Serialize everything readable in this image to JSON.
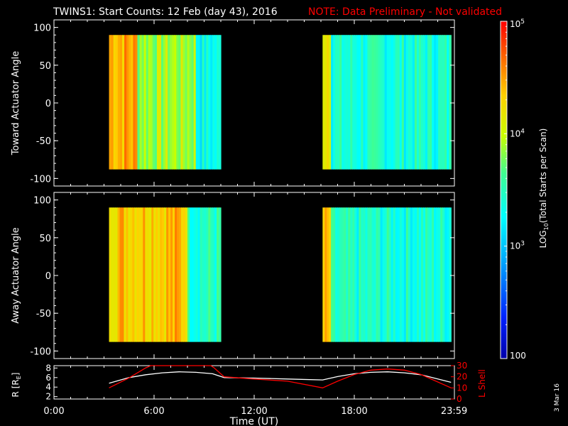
{
  "title": {
    "main": "TWINS1: Start Counts: 12 Feb (day  43), 2016",
    "note": "NOTE: Data Preliminary - Not validated"
  },
  "colors": {
    "background": "#000000",
    "axes": "#ffffff",
    "note": "#ff0000",
    "r_trace": "#ffffff",
    "l_trace": "#ff0000",
    "no_data": "#000000"
  },
  "colorbar": {
    "label": "LOG10(Total Starts per Scan)",
    "label_prefix": "LOG",
    "label_sub": "10",
    "label_suffix": "(Total Starts per Scan)",
    "min": 100,
    "max": 100000,
    "ticks": [
      {
        "value": 100,
        "label": "100"
      },
      {
        "value": 1000,
        "label": "10^3",
        "base": "10",
        "exp": "3"
      },
      {
        "value": 10000,
        "label": "10^4",
        "base": "10",
        "exp": "4"
      },
      {
        "value": 100000,
        "label": "10^5",
        "base": "10",
        "exp": "5"
      }
    ]
  },
  "date_stamp": "3 Mar 16",
  "chart_data": [
    {
      "type": "heatmap",
      "name": "toward",
      "ylabel": "Toward Actuator Angle",
      "xlabel": "",
      "xlim": [
        0,
        24
      ],
      "ylim": [
        -110,
        110
      ],
      "yticks": [
        100,
        50,
        0,
        -50,
        -100
      ],
      "ytick_labels": [
        "100",
        "50",
        "0",
        "-50",
        "-100"
      ],
      "data_blocks": [
        {
          "start": 3.3,
          "end": 10.0,
          "angle_min": -88,
          "angle_max": 90
        },
        {
          "start": 16.1,
          "end": 23.8,
          "angle_min": -88,
          "angle_max": 90
        }
      ],
      "typical_counts": [
        {
          "start": 3.3,
          "end": 5.0,
          "counts": 30000
        },
        {
          "start": 5.0,
          "end": 8.5,
          "counts": 8000
        },
        {
          "start": 8.5,
          "end": 10.0,
          "counts": 2000
        },
        {
          "start": 16.1,
          "end": 16.6,
          "counts": 20000
        },
        {
          "start": 16.6,
          "end": 23.8,
          "counts": 2500
        }
      ]
    },
    {
      "type": "heatmap",
      "name": "away",
      "ylabel": "Away Actuator Angle",
      "xlabel": "",
      "xlim": [
        0,
        24
      ],
      "ylim": [
        -110,
        110
      ],
      "yticks": [
        100,
        50,
        0,
        -50,
        -100
      ],
      "ytick_labels": [
        "100",
        "50",
        "0",
        "-50",
        "-100"
      ],
      "data_blocks": [
        {
          "start": 3.3,
          "end": 10.0,
          "angle_min": -88,
          "angle_max": 90
        },
        {
          "start": 16.1,
          "end": 23.8,
          "angle_min": -88,
          "angle_max": 90
        }
      ],
      "typical_counts": [
        {
          "start": 3.3,
          "end": 8.0,
          "counts": 25000
        },
        {
          "start": 8.0,
          "end": 10.0,
          "counts": 3000
        },
        {
          "start": 16.1,
          "end": 16.6,
          "counts": 20000
        },
        {
          "start": 16.6,
          "end": 23.8,
          "counts": 2500
        }
      ]
    },
    {
      "type": "line",
      "name": "orbit",
      "ylabel": "R [RE]",
      "ylabel_main": "R [R",
      "ylabel_sub": "E",
      "ylabel_tail": "]",
      "y2label": "L Shell",
      "xlabel": "Time (UT)",
      "xlim": [
        0,
        24
      ],
      "xticks": [
        0,
        6,
        12,
        18,
        23.983
      ],
      "xtick_labels": [
        "0:00",
        "6:00",
        "12:00",
        "18:00",
        "23:59"
      ],
      "ylim": [
        1.5,
        8.5
      ],
      "yticks": [
        2,
        4,
        6,
        8
      ],
      "ytick_labels": [
        "2",
        "4",
        "6",
        "8"
      ],
      "y2lim": [
        0,
        30
      ],
      "y2ticks": [
        0,
        10,
        20,
        30
      ],
      "y2tick_labels": [
        "0",
        "10",
        "20",
        "30"
      ],
      "series": [
        {
          "name": "R",
          "axis": "left",
          "x": [
            3.3,
            4.5,
            5.5,
            6.5,
            7.5,
            8.5,
            9.5,
            10.2,
            12,
            14,
            16.1,
            17,
            18,
            19,
            20,
            21,
            22,
            23.8
          ],
          "y": [
            4.8,
            6.0,
            6.6,
            7.0,
            7.2,
            7.1,
            6.8,
            6.0,
            5.9,
            5.7,
            5.5,
            6.2,
            6.8,
            7.1,
            7.2,
            7.0,
            6.6,
            5.0
          ]
        },
        {
          "name": "L Shell",
          "axis": "right",
          "x": [
            3.3,
            4.5,
            5.5,
            5.8,
            9.4,
            9.6,
            10.2,
            12,
            14,
            16.1,
            17,
            18,
            19,
            20,
            21,
            22,
            23.8
          ],
          "y": [
            10,
            19,
            28,
            31,
            31,
            28,
            20,
            18,
            16,
            10,
            16,
            22,
            26,
            27,
            26,
            22,
            10
          ]
        }
      ]
    }
  ]
}
